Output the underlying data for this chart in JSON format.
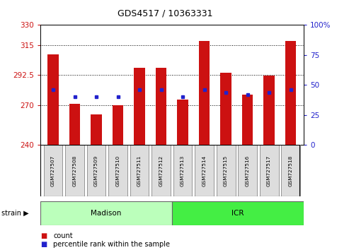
{
  "title": "GDS4517 / 10363331",
  "samples": [
    "GSM727507",
    "GSM727508",
    "GSM727509",
    "GSM727510",
    "GSM727511",
    "GSM727512",
    "GSM727513",
    "GSM727514",
    "GSM727515",
    "GSM727516",
    "GSM727517",
    "GSM727518"
  ],
  "count_values": [
    308,
    271,
    263,
    270,
    298,
    298,
    274,
    318,
    294,
    278,
    292,
    318
  ],
  "percentile_values": [
    46,
    40,
    40,
    40,
    46,
    46,
    40,
    46,
    44,
    42,
    44,
    46
  ],
  "ymin": 240,
  "ymax": 330,
  "yticks": [
    240,
    270,
    292.5,
    315,
    330
  ],
  "ytick_labels": [
    "240",
    "270",
    "292.5",
    "315",
    "330"
  ],
  "y2min": 0,
  "y2max": 100,
  "y2ticks": [
    0,
    25,
    50,
    75,
    100
  ],
  "y2tick_labels": [
    "0",
    "25",
    "50",
    "75",
    "100%"
  ],
  "bar_color": "#cc1111",
  "dot_color": "#2222cc",
  "madison_color": "#bbffbb",
  "icr_color": "#44ee44",
  "strain_label": "strain",
  "madison_label": "Madison",
  "icr_label": "ICR",
  "legend_count": "count",
  "legend_percentile": "percentile rank within the sample",
  "tick_color_left": "#cc1111",
  "tick_color_right": "#2222cc",
  "background_color": "#ffffff",
  "label_box_color": "#dddddd",
  "bar_width": 0.5
}
